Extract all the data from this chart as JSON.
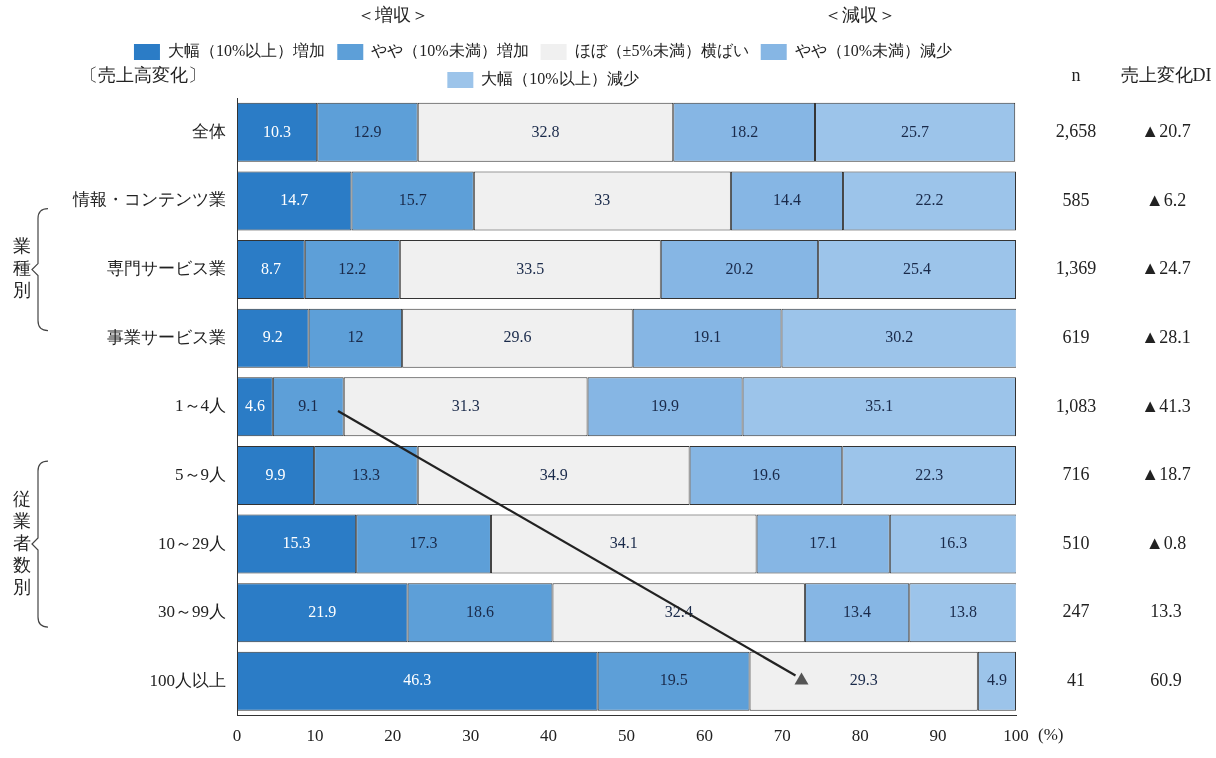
{
  "chart_data": {
    "type": "bar",
    "orientation": "horizontal",
    "stacked": true,
    "data_labels": true,
    "grid": false,
    "legend": "top",
    "legend_title": "〔売上高変化〕",
    "xlabel": "(%)",
    "categories": [
      "全体",
      "情報・コンテンツ業",
      "専門サービス業",
      "事業サービス業",
      "1～4人",
      "5～9人",
      "10～29人",
      "30～99人",
      "100人以上"
    ],
    "series": [
      {
        "name": "大幅（10%以上）増加",
        "color": "#2b7cc6",
        "values": [
          10.3,
          14.7,
          8.7,
          9.2,
          4.6,
          9.9,
          15.3,
          21.9,
          46.3
        ]
      },
      {
        "name": "やや（10%未満）増加",
        "color": "#5d9fd8",
        "values": [
          12.9,
          15.7,
          12.2,
          12.0,
          9.1,
          13.3,
          17.3,
          18.6,
          19.5
        ]
      },
      {
        "name": "ほぼ（±5%未満）横ばい",
        "color": "#f0f0f0",
        "values": [
          32.8,
          33.0,
          33.5,
          29.6,
          31.3,
          34.9,
          34.1,
          32.4,
          29.3
        ]
      },
      {
        "name": "やや（10%未満）減少",
        "color": "#86b6e4",
        "values": [
          18.2,
          14.4,
          20.2,
          19.1,
          19.9,
          19.6,
          17.1,
          13.4,
          null
        ]
      },
      {
        "name": "大幅（10%以上）減少",
        "color": "#9cc4ea",
        "values": [
          25.7,
          22.2,
          25.4,
          30.2,
          35.1,
          22.3,
          16.3,
          13.8,
          4.9
        ]
      }
    ],
    "xlim": [
      0,
      100
    ],
    "xticks": [
      0,
      10,
      20,
      30,
      40,
      50,
      60,
      70,
      80,
      90,
      100
    ],
    "annotations": [
      "＜増収＞",
      "＜減収＞",
      "n",
      "売上変化DI",
      "業種別",
      "従業者数別",
      "2,658",
      "▲20.7",
      "585",
      "▲6.2",
      "1,369",
      "▲24.7",
      "619",
      "▲28.1",
      "1,083",
      "▲41.3",
      "716",
      "▲18.7",
      "510",
      "▲0.8",
      "247",
      "13.3",
      "41",
      "60.9"
    ]
  }
}
